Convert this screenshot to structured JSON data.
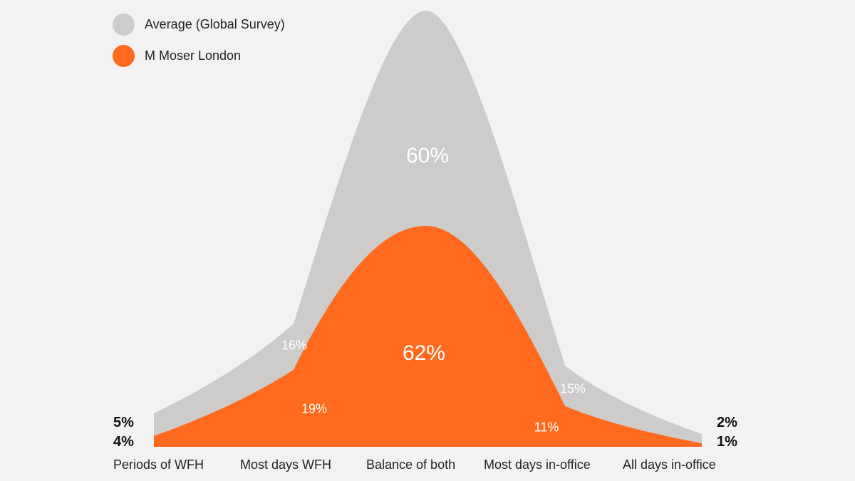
{
  "chart_data": {
    "type": "area",
    "categories": [
      "Periods of WFH",
      "Most days WFH",
      "Balance of both",
      "Most days in-office",
      "All days in-office"
    ],
    "series": [
      {
        "name": "Average (Global Survey)",
        "values": [
          5,
          16,
          60,
          15,
          2
        ],
        "labels": [
          "5%",
          "16%",
          "60%",
          "15%",
          "2%"
        ],
        "color": "#cdcccb"
      },
      {
        "name": "M Moser London",
        "values": [
          4,
          19,
          62,
          11,
          1
        ],
        "labels": [
          "4%",
          "19%",
          "62%",
          "11%",
          "1%"
        ],
        "color": "#ff6a1f"
      }
    ],
    "title": "",
    "xlabel": "",
    "ylabel": "",
    "grid": false,
    "legend": "top-left"
  }
}
